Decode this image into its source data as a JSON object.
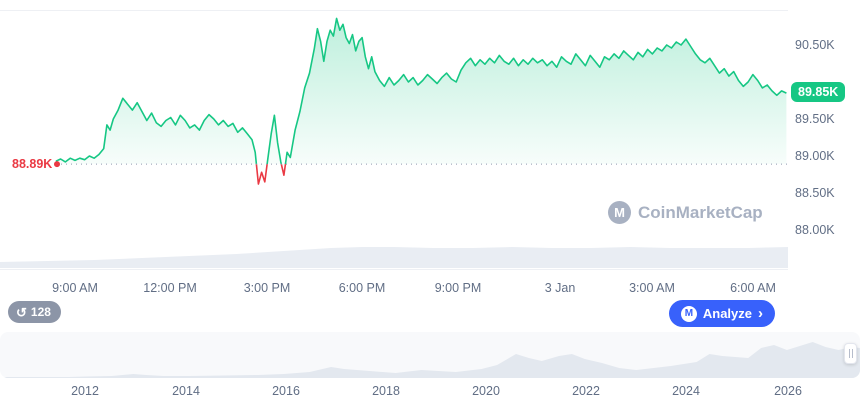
{
  "colors": {
    "green": "#16c784",
    "red": "#ea3943",
    "blue": "#3861fb",
    "axis_text": "#616e85",
    "watermark_gray": "#a8b1c2",
    "volume_gray": "#e9edf3",
    "minimap_gray": "#e3e8ef"
  },
  "current_price": {
    "label": "89.85K"
  },
  "reference_price": {
    "label": "88.89K"
  },
  "watermark": {
    "text": "CoinMarketCap",
    "logo_letter": "M"
  },
  "price_axis": {
    "labels": [
      "90.50K",
      "89.50K",
      "89.00K",
      "88.50K",
      "88.00K"
    ]
  },
  "time_axis": {
    "labels": [
      "9:00 AM",
      "12:00 PM",
      "3:00 PM",
      "6:00 PM",
      "9:00 PM",
      "3 Jan",
      "3:00 AM",
      "6:00 AM"
    ]
  },
  "year_axis": {
    "labels": [
      "2012",
      "2014",
      "2016",
      "2018",
      "2020",
      "2022",
      "2024",
      "2026"
    ]
  },
  "controls": {
    "count_badge": "128",
    "history_icon": "↺",
    "analyze_label": "Analyze",
    "analyze_chevron": "›",
    "logo_letter": "M"
  },
  "chart_data": [
    {
      "type": "line",
      "title": "Intraday price chart (thousand USD)",
      "x_unit": "hour_of_day_24h_plus_24_for_next_day",
      "y_unit": "price_thousand_USD",
      "x_ticks": [
        9,
        12,
        15,
        18,
        21,
        24,
        27,
        30
      ],
      "x_tick_labels": [
        "9:00 AM",
        "12:00 PM",
        "3:00 PM",
        "6:00 PM",
        "9:00 PM",
        "3 Jan",
        "3:00 AM",
        "6:00 AM"
      ],
      "y_ticks": [
        90.5,
        89.5,
        89.0,
        88.5,
        88.0
      ],
      "y_tick_labels": [
        "90.50K",
        "89.50K",
        "89.00K",
        "88.50K",
        "88.00K"
      ],
      "ylim": [
        87.45,
        90.97
      ],
      "reference_value": 88.89,
      "current_value": 89.85,
      "line_color_above_ref": "#16c784",
      "line_color_below_ref": "#ea3943",
      "points": [
        [
          8.4,
          88.93
        ],
        [
          8.55,
          88.96
        ],
        [
          8.7,
          88.92
        ],
        [
          8.85,
          88.97
        ],
        [
          9.0,
          88.94
        ],
        [
          9.15,
          88.97
        ],
        [
          9.3,
          88.95
        ],
        [
          9.45,
          89.0
        ],
        [
          9.6,
          88.97
        ],
        [
          9.75,
          89.02
        ],
        [
          9.9,
          89.1
        ],
        [
          10.0,
          89.42
        ],
        [
          10.1,
          89.35
        ],
        [
          10.2,
          89.5
        ],
        [
          10.35,
          89.62
        ],
        [
          10.5,
          89.78
        ],
        [
          10.65,
          89.7
        ],
        [
          10.8,
          89.62
        ],
        [
          10.95,
          89.72
        ],
        [
          11.1,
          89.6
        ],
        [
          11.25,
          89.48
        ],
        [
          11.4,
          89.58
        ],
        [
          11.55,
          89.45
        ],
        [
          11.7,
          89.4
        ],
        [
          11.85,
          89.48
        ],
        [
          12.0,
          89.52
        ],
        [
          12.15,
          89.42
        ],
        [
          12.3,
          89.55
        ],
        [
          12.45,
          89.48
        ],
        [
          12.6,
          89.38
        ],
        [
          12.75,
          89.42
        ],
        [
          12.9,
          89.35
        ],
        [
          13.05,
          89.48
        ],
        [
          13.2,
          89.56
        ],
        [
          13.35,
          89.5
        ],
        [
          13.5,
          89.42
        ],
        [
          13.65,
          89.48
        ],
        [
          13.8,
          89.4
        ],
        [
          13.95,
          89.44
        ],
        [
          14.1,
          89.32
        ],
        [
          14.25,
          89.38
        ],
        [
          14.4,
          89.3
        ],
        [
          14.55,
          89.22
        ],
        [
          14.65,
          89.05
        ],
        [
          14.75,
          88.62
        ],
        [
          14.85,
          88.78
        ],
        [
          14.95,
          88.65
        ],
        [
          15.05,
          88.98
        ],
        [
          15.15,
          89.3
        ],
        [
          15.25,
          89.55
        ],
        [
          15.35,
          89.18
        ],
        [
          15.45,
          88.92
        ],
        [
          15.55,
          88.74
        ],
        [
          15.65,
          89.05
        ],
        [
          15.75,
          88.98
        ],
        [
          15.9,
          89.35
        ],
        [
          16.05,
          89.6
        ],
        [
          16.2,
          89.92
        ],
        [
          16.35,
          90.12
        ],
        [
          16.5,
          90.45
        ],
        [
          16.6,
          90.72
        ],
        [
          16.7,
          90.55
        ],
        [
          16.8,
          90.28
        ],
        [
          16.9,
          90.55
        ],
        [
          17.0,
          90.7
        ],
        [
          17.1,
          90.62
        ],
        [
          17.2,
          90.86
        ],
        [
          17.3,
          90.7
        ],
        [
          17.4,
          90.78
        ],
        [
          17.5,
          90.6
        ],
        [
          17.6,
          90.52
        ],
        [
          17.7,
          90.64
        ],
        [
          17.8,
          90.42
        ],
        [
          17.9,
          90.55
        ],
        [
          18.0,
          90.6
        ],
        [
          18.1,
          90.34
        ],
        [
          18.2,
          90.18
        ],
        [
          18.3,
          90.34
        ],
        [
          18.4,
          90.14
        ],
        [
          18.55,
          90.02
        ],
        [
          18.7,
          89.94
        ],
        [
          18.85,
          90.06
        ],
        [
          19.0,
          89.96
        ],
        [
          19.15,
          90.02
        ],
        [
          19.3,
          90.1
        ],
        [
          19.45,
          90.0
        ],
        [
          19.6,
          90.06
        ],
        [
          19.75,
          89.96
        ],
        [
          19.9,
          90.02
        ],
        [
          20.05,
          90.1
        ],
        [
          20.2,
          90.04
        ],
        [
          20.35,
          89.98
        ],
        [
          20.5,
          90.06
        ],
        [
          20.65,
          90.12
        ],
        [
          20.8,
          90.04
        ],
        [
          20.95,
          90.0
        ],
        [
          21.1,
          90.16
        ],
        [
          21.25,
          90.26
        ],
        [
          21.4,
          90.32
        ],
        [
          21.55,
          90.22
        ],
        [
          21.7,
          90.3
        ],
        [
          21.85,
          90.24
        ],
        [
          22.0,
          90.32
        ],
        [
          22.15,
          90.26
        ],
        [
          22.3,
          90.36
        ],
        [
          22.45,
          90.28
        ],
        [
          22.6,
          90.24
        ],
        [
          22.75,
          90.32
        ],
        [
          22.9,
          90.22
        ],
        [
          23.05,
          90.3
        ],
        [
          23.2,
          90.24
        ],
        [
          23.35,
          90.32
        ],
        [
          23.5,
          90.26
        ],
        [
          23.65,
          90.3
        ],
        [
          23.8,
          90.22
        ],
        [
          23.95,
          90.28
        ],
        [
          24.1,
          90.2
        ],
        [
          24.25,
          90.34
        ],
        [
          24.4,
          90.28
        ],
        [
          24.55,
          90.24
        ],
        [
          24.7,
          90.38
        ],
        [
          24.85,
          90.3
        ],
        [
          25.0,
          90.22
        ],
        [
          25.15,
          90.36
        ],
        [
          25.3,
          90.28
        ],
        [
          25.45,
          90.2
        ],
        [
          25.6,
          90.34
        ],
        [
          25.75,
          90.3
        ],
        [
          25.9,
          90.38
        ],
        [
          26.05,
          90.32
        ],
        [
          26.2,
          90.42
        ],
        [
          26.35,
          90.36
        ],
        [
          26.5,
          90.3
        ],
        [
          26.65,
          90.4
        ],
        [
          26.8,
          90.34
        ],
        [
          26.95,
          90.44
        ],
        [
          27.1,
          90.38
        ],
        [
          27.25,
          90.46
        ],
        [
          27.4,
          90.42
        ],
        [
          27.55,
          90.5
        ],
        [
          27.7,
          90.46
        ],
        [
          27.85,
          90.54
        ],
        [
          28.0,
          90.5
        ],
        [
          28.15,
          90.58
        ],
        [
          28.3,
          90.48
        ],
        [
          28.45,
          90.38
        ],
        [
          28.6,
          90.3
        ],
        [
          28.75,
          90.26
        ],
        [
          28.9,
          90.32
        ],
        [
          29.05,
          90.22
        ],
        [
          29.2,
          90.12
        ],
        [
          29.35,
          90.18
        ],
        [
          29.5,
          90.08
        ],
        [
          29.65,
          90.14
        ],
        [
          29.8,
          90.02
        ],
        [
          29.95,
          89.94
        ],
        [
          30.1,
          90.0
        ],
        [
          30.25,
          90.1
        ],
        [
          30.4,
          90.02
        ],
        [
          30.55,
          89.92
        ],
        [
          30.7,
          89.96
        ],
        [
          30.85,
          89.88
        ],
        [
          31.0,
          89.82
        ],
        [
          31.15,
          89.88
        ],
        [
          31.3,
          89.85
        ]
      ],
      "volume_profile": [
        [
          0,
          6
        ],
        [
          0.06,
          7
        ],
        [
          0.12,
          8
        ],
        [
          0.18,
          10
        ],
        [
          0.24,
          12
        ],
        [
          0.3,
          14
        ],
        [
          0.36,
          17
        ],
        [
          0.42,
          20
        ],
        [
          0.46,
          21
        ],
        [
          0.5,
          21
        ],
        [
          0.55,
          20
        ],
        [
          0.6,
          20
        ],
        [
          0.65,
          21
        ],
        [
          0.7,
          20
        ],
        [
          0.75,
          20
        ],
        [
          0.8,
          21
        ],
        [
          0.85,
          20
        ],
        [
          0.9,
          20
        ],
        [
          0.95,
          20
        ],
        [
          1,
          21
        ]
      ]
    },
    {
      "type": "area",
      "title": "All-time history minimap",
      "x_unit": "fraction_of_width",
      "y_unit": "relative_height_px",
      "x_tick_labels": [
        "2012",
        "2014",
        "2016",
        "2018",
        "2020",
        "2022",
        "2024",
        "2026"
      ],
      "points": [
        [
          0,
          1
        ],
        [
          0.04,
          1
        ],
        [
          0.08,
          1
        ],
        [
          0.1,
          1.5
        ],
        [
          0.13,
          2
        ],
        [
          0.155,
          4
        ],
        [
          0.17,
          3
        ],
        [
          0.19,
          2
        ],
        [
          0.22,
          2
        ],
        [
          0.26,
          2.5
        ],
        [
          0.3,
          3
        ],
        [
          0.33,
          4
        ],
        [
          0.36,
          6
        ],
        [
          0.385,
          11
        ],
        [
          0.4,
          9
        ],
        [
          0.43,
          7
        ],
        [
          0.46,
          5
        ],
        [
          0.49,
          8
        ],
        [
          0.51,
          7
        ],
        [
          0.53,
          6
        ],
        [
          0.56,
          9
        ],
        [
          0.578,
          13
        ],
        [
          0.6,
          24
        ],
        [
          0.615,
          20
        ],
        [
          0.63,
          17
        ],
        [
          0.65,
          22
        ],
        [
          0.665,
          24
        ],
        [
          0.68,
          19
        ],
        [
          0.7,
          15
        ],
        [
          0.72,
          10
        ],
        [
          0.74,
          8
        ],
        [
          0.76,
          10
        ],
        [
          0.78,
          12
        ],
        [
          0.795,
          14
        ],
        [
          0.81,
          16
        ],
        [
          0.825,
          24
        ],
        [
          0.84,
          22
        ],
        [
          0.855,
          21
        ],
        [
          0.87,
          20
        ],
        [
          0.885,
          30
        ],
        [
          0.9,
          33
        ],
        [
          0.915,
          28
        ],
        [
          0.93,
          32
        ],
        [
          0.945,
          36
        ],
        [
          0.96,
          31
        ],
        [
          0.975,
          28
        ],
        [
          0.99,
          31
        ],
        [
          1,
          30
        ]
      ]
    }
  ]
}
